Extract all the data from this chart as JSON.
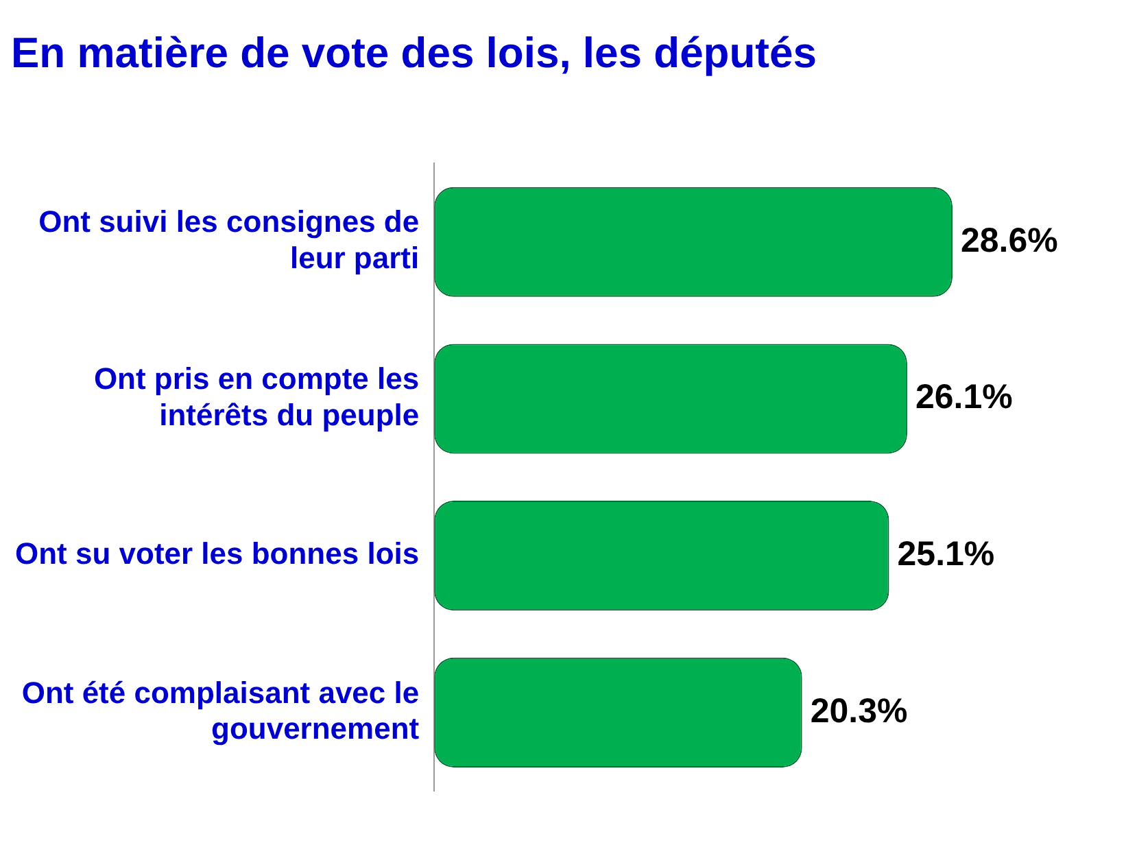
{
  "chart_data": {
    "type": "bar",
    "orientation": "horizontal",
    "title": "En matière de vote des lois, les députés",
    "categories": [
      "Ont suivi les consignes de leur parti",
      "Ont pris en compte les intérêts du peuple",
      "Ont su voter les bonnes lois",
      "Ont été complaisant avec le gouvernement"
    ],
    "values": [
      28.6,
      26.1,
      25.1,
      20.3
    ],
    "color": "#00b050",
    "value_labels": [
      "28.6%",
      "26.1%",
      "25.1%",
      "20.3%"
    ],
    "legend": false,
    "grid": false
  }
}
